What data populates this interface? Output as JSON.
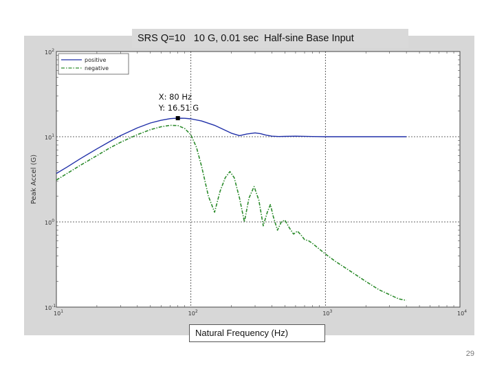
{
  "title": "SRS Q=10   10 G, 0.01 sec  Half-sine Base Input",
  "page_number": "29",
  "chart_data": {
    "type": "line",
    "title": "SRS Q=10   10 G, 0.01 sec  Half-sine Base Input",
    "xlabel": "Natural Frequency (Hz)",
    "ylabel": "Peak Accel (G)",
    "xscale": "log",
    "yscale": "log",
    "xlim": [
      10,
      10000
    ],
    "ylim": [
      0.1,
      100
    ],
    "grid": true,
    "legend_position": "top-left",
    "xticks": [
      {
        "base": "10",
        "exp": "1"
      },
      {
        "base": "10",
        "exp": "2"
      },
      {
        "base": "10",
        "exp": "3"
      },
      {
        "base": "10",
        "exp": "4"
      }
    ],
    "yticks": [
      {
        "base": "10",
        "exp": "-1"
      },
      {
        "base": "10",
        "exp": "0"
      },
      {
        "base": "10",
        "exp": "1"
      },
      {
        "base": "10",
        "exp": "2"
      }
    ],
    "series": [
      {
        "name": "positive",
        "color": "#1f2fa8",
        "style": "solid",
        "x": [
          10,
          12,
          15,
          20,
          25,
          30,
          40,
          50,
          60,
          70,
          80,
          90,
          100,
          120,
          150,
          180,
          200,
          230,
          260,
          300,
          330,
          360,
          400,
          450,
          500,
          600,
          800,
          1000,
          1200,
          1500,
          2000,
          3000,
          4000
        ],
        "y": [
          3.7,
          4.4,
          5.5,
          7.2,
          8.8,
          10.3,
          12.7,
          14.5,
          15.6,
          16.3,
          16.51,
          16.45,
          16.2,
          15.3,
          13.6,
          11.9,
          11.0,
          10.3,
          10.75,
          11.1,
          10.85,
          10.45,
          10.15,
          10.05,
          10.1,
          10.15,
          10.05,
          10.0,
          10.0,
          10.0,
          10.0,
          10.0,
          10.0
        ]
      },
      {
        "name": "negative",
        "color": "#2a8a2a",
        "style": "dashdot",
        "x": [
          10,
          12,
          15,
          20,
          25,
          30,
          40,
          50,
          60,
          70,
          80,
          90,
          100,
          110,
          120,
          135,
          150,
          165,
          180,
          195,
          210,
          230,
          250,
          270,
          295,
          320,
          345,
          370,
          390,
          410,
          440,
          470,
          500,
          540,
          580,
          620,
          660,
          700,
          750,
          800,
          900,
          1000,
          1200,
          1500,
          2000,
          2500,
          3000,
          3500,
          4000
        ],
        "y": [
          3.1,
          3.7,
          4.6,
          6.0,
          7.4,
          8.6,
          10.6,
          12.1,
          13.1,
          13.6,
          13.5,
          12.5,
          10.5,
          7.5,
          4.5,
          2.0,
          1.3,
          2.3,
          3.3,
          3.9,
          3.3,
          1.9,
          1.0,
          1.9,
          2.6,
          1.8,
          0.9,
          1.3,
          1.6,
          1.15,
          0.8,
          1.0,
          1.05,
          0.85,
          0.72,
          0.78,
          0.7,
          0.62,
          0.6,
          0.56,
          0.48,
          0.42,
          0.34,
          0.27,
          0.2,
          0.16,
          0.14,
          0.125,
          0.12
        ]
      }
    ],
    "annotation": {
      "x_label": "X: 80 Hz",
      "y_label": "Y: 16.51 G",
      "x": 80,
      "y": 16.51
    }
  }
}
